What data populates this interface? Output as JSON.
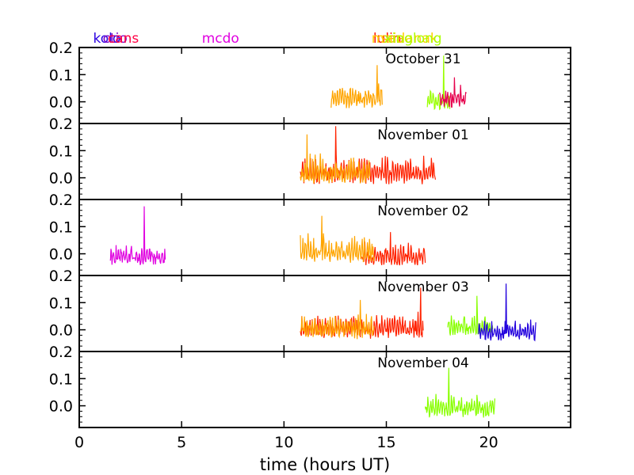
{
  "chart_data": {
    "type": "line",
    "xlabel": "time (hours UT)",
    "xlim": [
      0,
      24
    ],
    "xticks": [
      0,
      5,
      10,
      15,
      20
    ],
    "ylim": [
      -0.08,
      0.2
    ],
    "yticks": [
      0.0,
      0.1,
      0.2
    ],
    "ytick_labels": [
      "0.0",
      "0.1",
      "0.2"
    ],
    "sites": [
      {
        "name": "kolo",
        "color": "#2a00e0",
        "x": 1.35
      },
      {
        "name": "ctio",
        "color": "#7a00c8",
        "x": 1.75
      },
      {
        "name": "cans",
        "color": "#ff0044",
        "x": 2.15
      },
      {
        "name": "mcdo",
        "color": "#e000e0",
        "x": 6.9
      },
      {
        "name": "lulin",
        "color": "#ff1a00",
        "x": 15.05
      },
      {
        "name": "saao",
        "color": "#ffa500",
        "x": 15.5
      },
      {
        "name": "maidanak",
        "color": "#ffd000",
        "x": 15.9
      },
      {
        "name": "xinglong",
        "color": "#aaff00",
        "x": 16.3
      }
    ],
    "panels": [
      {
        "title": "October 31",
        "series": [
          {
            "name": "saao",
            "color": "#ffa500",
            "x_start": 12.3,
            "x_end": 14.8,
            "seed": 11,
            "base": 0.02,
            "amp": 0.055,
            "peak": 0.135
          },
          {
            "name": "xinglong",
            "color": "#99ff00",
            "x_start": 17.0,
            "x_end": 18.1,
            "seed": 12,
            "base": 0.01,
            "amp": 0.05,
            "peak": 0.17
          },
          {
            "name": "cans",
            "color": "#e6004c",
            "x_start": 17.6,
            "x_end": 18.9,
            "seed": 13,
            "base": 0.02,
            "amp": 0.05,
            "peak": 0.09
          }
        ]
      },
      {
        "title": "November 01",
        "series": [
          {
            "name": "lulin",
            "color": "#ff2200",
            "x_start": 10.8,
            "x_end": 17.4,
            "seed": 21,
            "base": 0.02,
            "amp": 0.07,
            "peak": 0.19
          },
          {
            "name": "saao",
            "color": "#ffa500",
            "x_start": 10.8,
            "x_end": 14.2,
            "seed": 22,
            "base": 0.02,
            "amp": 0.07,
            "peak": 0.16
          }
        ]
      },
      {
        "title": "November 02",
        "series": [
          {
            "name": "mcdo",
            "color": "#e000e0",
            "x_start": 1.5,
            "x_end": 4.2,
            "seed": 31,
            "base": 0.0,
            "amp": 0.045,
            "peak": 0.175
          },
          {
            "name": "lulin",
            "color": "#ff2200",
            "x_start": 13.8,
            "x_end": 16.9,
            "seed": 32,
            "base": 0.0,
            "amp": 0.05,
            "peak": 0.08
          },
          {
            "name": "saao",
            "color": "#ffa500",
            "x_start": 10.8,
            "x_end": 14.4,
            "seed": 33,
            "base": 0.01,
            "amp": 0.07,
            "peak": 0.14
          }
        ]
      },
      {
        "title": "November 03",
        "series": [
          {
            "name": "lulin",
            "color": "#ff2200",
            "x_start": 10.8,
            "x_end": 16.8,
            "seed": 41,
            "base": 0.01,
            "amp": 0.06,
            "peak": 0.155
          },
          {
            "name": "saao",
            "color": "#ffa500",
            "x_start": 10.8,
            "x_end": 14.4,
            "seed": 42,
            "base": 0.01,
            "amp": 0.06,
            "peak": 0.11
          },
          {
            "name": "xinglong",
            "color": "#88ff00",
            "x_start": 18.0,
            "x_end": 20.2,
            "seed": 43,
            "base": 0.02,
            "amp": 0.05,
            "peak": 0.125
          },
          {
            "name": "kolo",
            "color": "#2200dd",
            "x_start": 19.5,
            "x_end": 22.3,
            "seed": 44,
            "base": 0.0,
            "amp": 0.05,
            "peak": 0.17
          }
        ]
      },
      {
        "title": "November 04",
        "series": [
          {
            "name": "xinglong",
            "color": "#88ff00",
            "x_start": 16.9,
            "x_end": 20.3,
            "seed": 51,
            "base": 0.0,
            "amp": 0.05,
            "peak": 0.14
          }
        ]
      }
    ]
  }
}
